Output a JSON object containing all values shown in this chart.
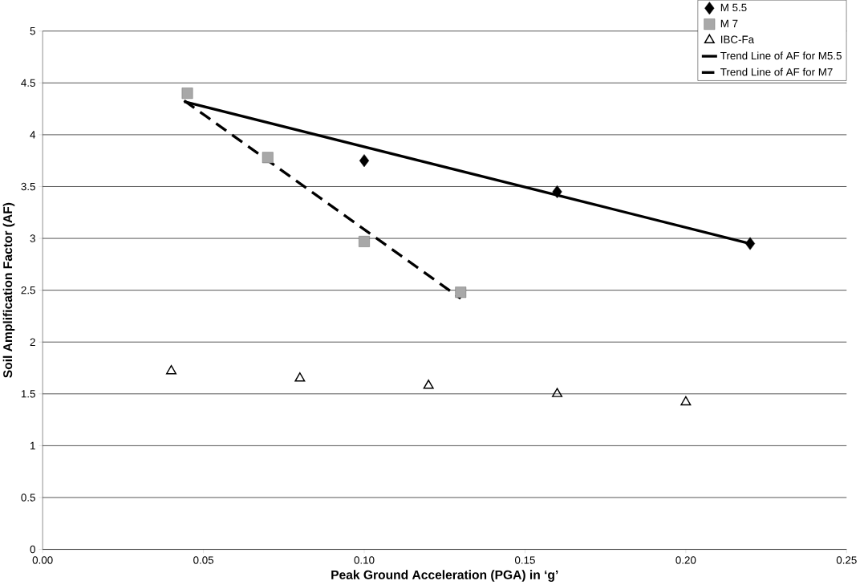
{
  "chart_data": {
    "type": "scatter",
    "xlabel": "Peak Ground Acceleration (PGA) in ‘g’",
    "ylabel": "Soil Amplification Factor (AF)",
    "xlim": [
      0,
      0.25
    ],
    "ylim": [
      0,
      5
    ],
    "xticks": [
      {
        "value": 0,
        "label": "0.00"
      },
      {
        "value": 0.05,
        "label": "0.05"
      },
      {
        "value": 0.1,
        "label": "0.10"
      },
      {
        "value": 0.15,
        "label": "0.15"
      },
      {
        "value": 0.2,
        "label": "0.20"
      },
      {
        "value": 0.25,
        "label": "0.25"
      }
    ],
    "yticks": [
      0,
      0.5,
      1,
      1.5,
      2,
      2.5,
      3,
      3.5,
      4,
      4.5,
      5
    ],
    "grid": "y",
    "legend": "top right",
    "series": [
      {
        "name": "M 5.5",
        "type": "scatter",
        "marker": "diamond",
        "color": "#000000",
        "x": [
          0.1,
          0.16,
          0.22
        ],
        "values": [
          3.75,
          3.45,
          2.95
        ]
      },
      {
        "name": "M 7",
        "type": "scatter",
        "marker": "square",
        "color": "#a8a8a8",
        "x": [
          0.045,
          0.07,
          0.1,
          0.13
        ],
        "values": [
          4.4,
          3.78,
          2.97,
          2.48
        ]
      },
      {
        "name": "IBC-Fa",
        "type": "scatter",
        "marker": "triangle",
        "color": "#000000",
        "x": [
          0.04,
          0.08,
          0.12,
          0.16,
          0.2
        ],
        "values": [
          1.72,
          1.65,
          1.58,
          1.5,
          1.42
        ]
      },
      {
        "name": "Trend Line of AF for M5.5",
        "type": "line",
        "marker": "none",
        "line_style": "solid",
        "color": "#000000",
        "x": [
          0.044,
          0.22
        ],
        "values": [
          4.32,
          2.95
        ]
      },
      {
        "name": "Trend Line of AF for M7",
        "type": "line",
        "marker": "none",
        "line_style": "dashed",
        "color": "#000000",
        "x": [
          0.044,
          0.13
        ],
        "values": [
          4.33,
          2.42
        ]
      }
    ]
  }
}
